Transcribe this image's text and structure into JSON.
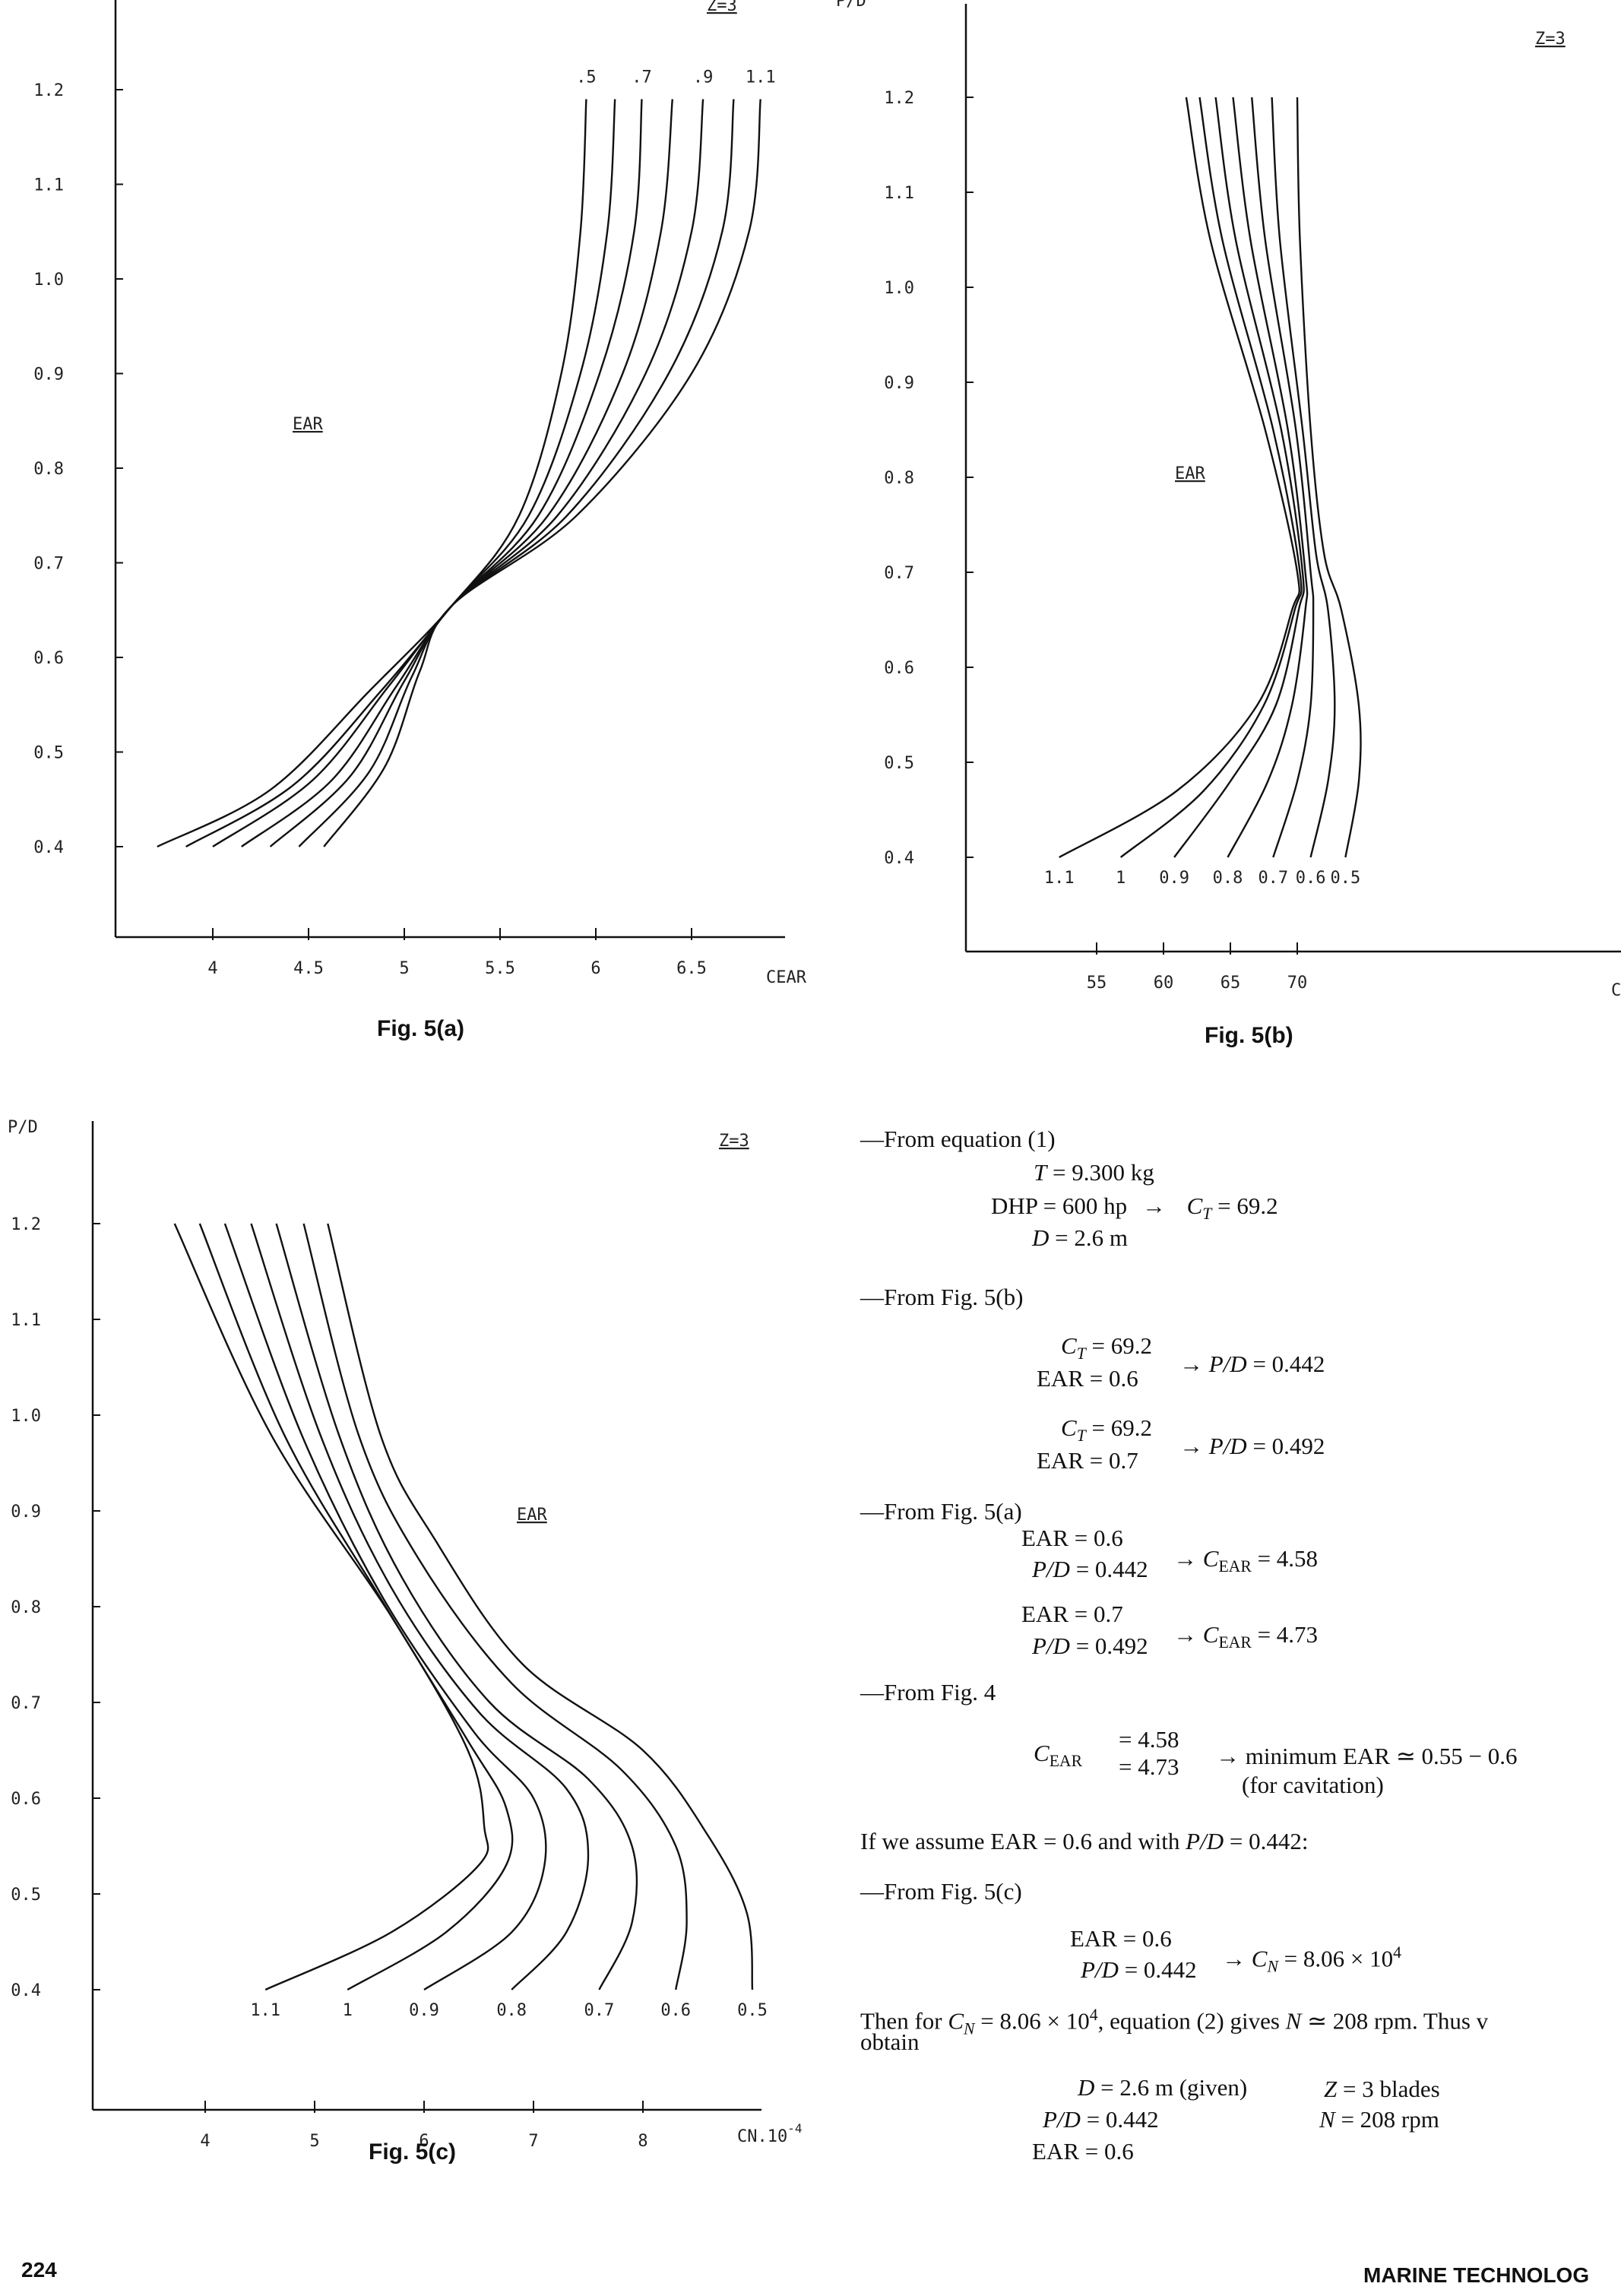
{
  "page": {
    "page_number": "224",
    "journal": "MARINE TECHNOLOG"
  },
  "chart_data": [
    {
      "id": "fig5a",
      "type": "line",
      "caption": "Fig. 5(a)",
      "z_label": "Z=3",
      "curve_label": "EAR",
      "xlabel": "CEAR",
      "ylabel": "",
      "xlim": [
        3.5,
        7.1
      ],
      "ylim": [
        0.3,
        1.28
      ],
      "xticks": [
        {
          "v": 4,
          "t": "4"
        },
        {
          "v": 4.5,
          "t": "4.5"
        },
        {
          "v": 5,
          "t": "5"
        },
        {
          "v": 5.5,
          "t": "5.5"
        },
        {
          "v": 6,
          "t": "6"
        },
        {
          "v": 6.5,
          "t": "6.5"
        }
      ],
      "yticks": [
        {
          "v": 0.4,
          "t": "0.4"
        },
        {
          "v": 0.5,
          "t": "0.5"
        },
        {
          "v": 0.6,
          "t": "0.6"
        },
        {
          "v": 0.7,
          "t": "0.7"
        },
        {
          "v": 0.8,
          "t": "0.8"
        },
        {
          "v": 0.9,
          "t": "0.9"
        },
        {
          "v": 1.0,
          "t": "1.0"
        },
        {
          "v": 1.1,
          "t": "1.1"
        },
        {
          "v": 1.2,
          "t": "1.2"
        }
      ],
      "series": [
        {
          "name": ".5",
          "points": [
            [
              3.71,
              0.4
            ],
            [
              4.3,
              0.46
            ],
            [
              4.82,
              0.565
            ],
            [
              5.25,
              0.655
            ],
            [
              5.6,
              0.75
            ],
            [
              5.82,
              0.9
            ],
            [
              5.92,
              1.05
            ],
            [
              5.95,
              1.19
            ]
          ]
        },
        {
          "name": "",
          "points": [
            [
              3.86,
              0.4
            ],
            [
              4.42,
              0.465
            ],
            [
              4.88,
              0.565
            ],
            [
              5.25,
              0.655
            ],
            [
              5.65,
              0.75
            ],
            [
              5.92,
              0.9
            ],
            [
              6.06,
              1.05
            ],
            [
              6.1,
              1.19
            ]
          ]
        },
        {
          "name": ".7",
          "points": [
            [
              4.0,
              0.4
            ],
            [
              4.52,
              0.47
            ],
            [
              4.92,
              0.57
            ],
            [
              5.25,
              0.655
            ],
            [
              5.7,
              0.75
            ],
            [
              6.02,
              0.9
            ],
            [
              6.2,
              1.05
            ],
            [
              6.24,
              1.19
            ]
          ]
        },
        {
          "name": "",
          "points": [
            [
              4.15,
              0.4
            ],
            [
              4.62,
              0.47
            ],
            [
              4.96,
              0.57
            ],
            [
              5.25,
              0.655
            ],
            [
              5.75,
              0.75
            ],
            [
              6.14,
              0.9
            ],
            [
              6.34,
              1.05
            ],
            [
              6.4,
              1.19
            ]
          ]
        },
        {
          "name": ".9",
          "points": [
            [
              4.3,
              0.4
            ],
            [
              4.72,
              0.475
            ],
            [
              5.0,
              0.575
            ],
            [
              5.25,
              0.655
            ],
            [
              5.8,
              0.75
            ],
            [
              6.26,
              0.9
            ],
            [
              6.5,
              1.05
            ],
            [
              6.56,
              1.19
            ]
          ]
        },
        {
          "name": "",
          "points": [
            [
              4.45,
              0.4
            ],
            [
              4.82,
              0.48
            ],
            [
              5.04,
              0.58
            ],
            [
              5.25,
              0.655
            ],
            [
              5.85,
              0.75
            ],
            [
              6.38,
              0.9
            ],
            [
              6.66,
              1.05
            ],
            [
              6.72,
              1.19
            ]
          ]
        },
        {
          "name": "1.1",
          "points": [
            [
              4.58,
              0.4
            ],
            [
              4.9,
              0.485
            ],
            [
              5.08,
              0.585
            ],
            [
              5.25,
              0.655
            ],
            [
              5.9,
              0.75
            ],
            [
              6.5,
              0.9
            ],
            [
              6.8,
              1.05
            ],
            [
              6.86,
              1.19
            ]
          ]
        }
      ]
    },
    {
      "id": "fig5b",
      "type": "line",
      "caption": "Fig. 5(b)",
      "z_label": "Z=3",
      "curve_label": "EAR",
      "xlabel": "C",
      "ylabel": "P/D",
      "xlim": [
        50,
        79
      ],
      "ylim": [
        0.3,
        1.28
      ],
      "xticks": [
        {
          "v": 55,
          "t": "55"
        },
        {
          "v": 60,
          "t": "60"
        },
        {
          "v": 65,
          "t": "65"
        },
        {
          "v": 70,
          "t": "70"
        }
      ],
      "yticks": [
        {
          "v": 0.4,
          "t": "0.4"
        },
        {
          "v": 0.5,
          "t": "0.5"
        },
        {
          "v": 0.6,
          "t": "0.6"
        },
        {
          "v": 0.7,
          "t": "0.7"
        },
        {
          "v": 0.8,
          "t": "0.8"
        },
        {
          "v": 0.9,
          "t": "0.9"
        },
        {
          "v": 1.0,
          "t": "1.0"
        },
        {
          "v": 1.1,
          "t": "1.1"
        },
        {
          "v": 1.2,
          "t": "1.2"
        }
      ],
      "series": [
        {
          "name": "1.1",
          "points": [
            [
              52.2,
              0.4
            ],
            [
              61,
              0.47
            ],
            [
              67,
              0.56
            ],
            [
              69.6,
              0.66
            ],
            [
              70,
              0.7
            ],
            [
              67.6,
              0.85
            ],
            [
              63.5,
              1.05
            ],
            [
              61.7,
              1.2
            ]
          ]
        },
        {
          "name": "1",
          "points": [
            [
              56.8,
              0.4
            ],
            [
              63,
              0.47
            ],
            [
              67.5,
              0.56
            ],
            [
              69.8,
              0.66
            ],
            [
              70.2,
              0.7
            ],
            [
              68.2,
              0.85
            ],
            [
              64.4,
              1.05
            ],
            [
              62.7,
              1.2
            ]
          ]
        },
        {
          "name": "0.9",
          "points": [
            [
              60.8,
              0.4
            ],
            [
              65,
              0.48
            ],
            [
              68.4,
              0.56
            ],
            [
              70.1,
              0.66
            ],
            [
              70.4,
              0.7
            ],
            [
              68.8,
              0.85
            ],
            [
              65.4,
              1.05
            ],
            [
              63.9,
              1.2
            ]
          ]
        },
        {
          "name": "0.8",
          "points": [
            [
              64.8,
              0.4
            ],
            [
              67.8,
              0.48
            ],
            [
              69.6,
              0.56
            ],
            [
              70.6,
              0.66
            ],
            [
              70.6,
              0.7
            ],
            [
              69.3,
              0.85
            ],
            [
              66.5,
              1.05
            ],
            [
              65.2,
              1.2
            ]
          ]
        },
        {
          "name": "0.7",
          "points": [
            [
              68.2,
              0.4
            ],
            [
              70,
              0.48
            ],
            [
              71,
              0.56
            ],
            [
              71.2,
              0.66
            ],
            [
              71,
              0.7
            ],
            [
              69.9,
              0.85
            ],
            [
              67.6,
              1.05
            ],
            [
              66.6,
              1.2
            ]
          ]
        },
        {
          "name": "0.6",
          "points": [
            [
              71,
              0.4
            ],
            [
              72.3,
              0.48
            ],
            [
              72.8,
              0.56
            ],
            [
              72.3,
              0.66
            ],
            [
              71.4,
              0.72
            ],
            [
              70.4,
              0.85
            ],
            [
              68.7,
              1.05
            ],
            [
              68.1,
              1.2
            ]
          ]
        },
        {
          "name": "0.5",
          "points": [
            [
              73.6,
              0.4
            ],
            [
              74.6,
              0.48
            ],
            [
              74.6,
              0.56
            ],
            [
              73.3,
              0.66
            ],
            [
              72,
              0.72
            ],
            [
              71,
              0.85
            ],
            [
              70.2,
              1.05
            ],
            [
              70,
              1.2
            ]
          ]
        }
      ]
    },
    {
      "id": "fig5c",
      "type": "line",
      "caption": "Fig. 5(c)",
      "z_label": "Z=3",
      "curve_label": "EAR",
      "xlabel": "CN.10",
      "xlabel_sup": "-4",
      "ylabel": "P/D",
      "xlim": [
        3.3,
        9.1
      ],
      "ylim": [
        0.3,
        1.28
      ],
      "xticks": [
        {
          "v": 4,
          "t": "4"
        },
        {
          "v": 5,
          "t": "5"
        },
        {
          "v": 6,
          "t": "6"
        },
        {
          "v": 7,
          "t": "7"
        },
        {
          "v": 8,
          "t": "8"
        }
      ],
      "yticks": [
        {
          "v": 0.4,
          "t": "0.4"
        },
        {
          "v": 0.5,
          "t": "0.5"
        },
        {
          "v": 0.6,
          "t": "0.6"
        },
        {
          "v": 0.7,
          "t": "0.7"
        },
        {
          "v": 0.8,
          "t": "0.8"
        },
        {
          "v": 0.9,
          "t": "0.9"
        },
        {
          "v": 1.0,
          "t": "1.0"
        },
        {
          "v": 1.1,
          "t": "1.1"
        },
        {
          "v": 1.2,
          "t": "1.2"
        }
      ],
      "series": [
        {
          "name": "1.1",
          "points": [
            [
              4.55,
              0.4
            ],
            [
              5.7,
              0.46
            ],
            [
              6.5,
              0.53
            ],
            [
              6.55,
              0.57
            ],
            [
              6.4,
              0.65
            ],
            [
              5.7,
              0.79
            ],
            [
              4.6,
              0.98
            ],
            [
              3.72,
              1.2
            ]
          ]
        },
        {
          "name": "1",
          "points": [
            [
              5.3,
              0.4
            ],
            [
              6.2,
              0.46
            ],
            [
              6.75,
              0.53
            ],
            [
              6.75,
              0.59
            ],
            [
              6.4,
              0.66
            ],
            [
              5.65,
              0.8
            ],
            [
              4.72,
              0.98
            ],
            [
              3.95,
              1.2
            ]
          ]
        },
        {
          "name": "0.9",
          "points": [
            [
              6.0,
              0.4
            ],
            [
              6.8,
              0.46
            ],
            [
              7.1,
              0.53
            ],
            [
              7.0,
              0.6
            ],
            [
              6.45,
              0.67
            ],
            [
              5.62,
              0.81
            ],
            [
              4.88,
              0.98
            ],
            [
              4.18,
              1.2
            ]
          ]
        },
        {
          "name": "0.8",
          "points": [
            [
              6.8,
              0.4
            ],
            [
              7.3,
              0.46
            ],
            [
              7.5,
              0.54
            ],
            [
              7.3,
              0.61
            ],
            [
              6.5,
              0.69
            ],
            [
              5.7,
              0.82
            ],
            [
              5.05,
              0.98
            ],
            [
              4.42,
              1.2
            ]
          ]
        },
        {
          "name": "0.7",
          "points": [
            [
              7.6,
              0.4
            ],
            [
              7.9,
              0.47
            ],
            [
              7.9,
              0.55
            ],
            [
              7.5,
              0.62
            ],
            [
              6.6,
              0.7
            ],
            [
              5.8,
              0.83
            ],
            [
              5.22,
              0.98
            ],
            [
              4.65,
              1.2
            ]
          ]
        },
        {
          "name": "0.6",
          "points": [
            [
              8.3,
              0.4
            ],
            [
              8.4,
              0.47
            ],
            [
              8.3,
              0.55
            ],
            [
              7.8,
              0.63
            ],
            [
              6.8,
              0.72
            ],
            [
              5.95,
              0.85
            ],
            [
              5.4,
              0.98
            ],
            [
              4.9,
              1.2
            ]
          ]
        },
        {
          "name": "0.5",
          "points": [
            [
              9.0,
              0.4
            ],
            [
              8.95,
              0.48
            ],
            [
              8.6,
              0.56
            ],
            [
              8.0,
              0.65
            ],
            [
              6.9,
              0.74
            ],
            [
              6.1,
              0.87
            ],
            [
              5.6,
              0.98
            ],
            [
              5.12,
              1.2
            ]
          ]
        }
      ]
    }
  ],
  "text": {
    "l1": "—From equation (1)",
    "l2_var": "T",
    "l2": " = 9.300 kg",
    "l3": "DHP = 600 hp",
    "arrow": "→",
    "ct_sym": "C",
    "ct_sub": "T",
    "l3_result": " = 69.2",
    "l4_var": "D",
    "l4": " = 2.6 m",
    "l5": "—From Fig. 5(b)",
    "l6_top": " = 69.2",
    "l6_bot": "EAR = 0.6",
    "l6_res_var": "P/D",
    "l6_res": " = 0.442",
    "l7_top": " = 69.2",
    "l7_bot": "EAR = 0.7",
    "l7_res": " = 0.492",
    "l8": "—From Fig. 5(a)",
    "l9_top": "EAR = 0.6",
    "l9_bot": " = 0.442",
    "cear_sub": "EAR",
    "l9_res": " = 4.58",
    "l10_top": "EAR = 0.7",
    "l10_bot": " = 0.492",
    "l10_res": " = 4.73",
    "l11": "—From Fig. 4",
    "l12_top": "= 4.58",
    "l12_bot": "= 4.73",
    "l12_res": "minimum EAR ≃ 0.55 − 0.6",
    "l12_note": "(for cavitation)",
    "l13a": "If we assume EAR = 0.6 and with ",
    "l13b": " = 0.442:",
    "l14": "—From Fig. 5(c)",
    "l15_top": "EAR = 0.6",
    "l15_bot": " = 0.442",
    "cn_sub": "N",
    "l15_res": " = 8.06 × 10",
    "l15_exp": "4",
    "l16a": "Then for ",
    "l16b": " = 8.06 × 10",
    "l16c": ", equation (2) gives ",
    "l16_n": "N",
    "l16d": " ≃ 208 rpm. Thus v",
    "l17": "obtain",
    "l18a_var": "D",
    "l18a": " = 2.6 m (given)",
    "l18b_var": "Z",
    "l18b": " = 3 blades",
    "l19a": " = 0.442",
    "l19b_var": "N",
    "l19b": " = 208 rpm",
    "l20": "EAR = 0.6"
  }
}
